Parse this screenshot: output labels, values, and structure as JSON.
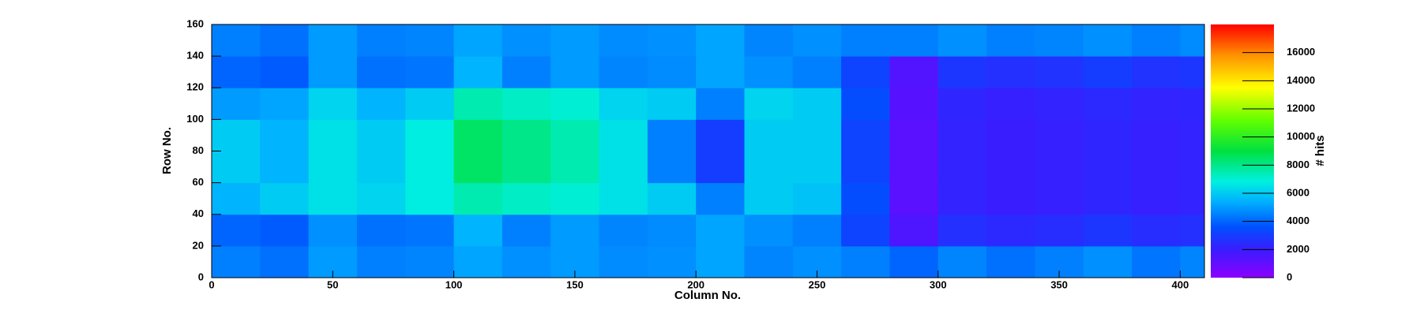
{
  "chart_data": {
    "type": "heatmap",
    "xlabel": "Column No.",
    "ylabel": "Row No.",
    "zlabel": "# hits",
    "xbins": [
      0,
      20,
      40,
      60,
      80,
      100,
      120,
      140,
      160,
      180,
      200,
      220,
      240,
      260,
      280,
      300,
      320,
      340,
      360,
      380,
      400,
      410
    ],
    "ybins": [
      0,
      20,
      40,
      60,
      80,
      100,
      120,
      140,
      160
    ],
    "z": [
      [
        4500,
        4200,
        5000,
        4500,
        4600,
        5200,
        4800,
        5000,
        4700,
        4800,
        5200,
        4600,
        4800,
        4500,
        4000,
        4600,
        4200,
        4500,
        4800,
        4300,
        4600
      ],
      [
        4000,
        3800,
        4800,
        4200,
        4300,
        5500,
        4500,
        5000,
        4600,
        4700,
        5200,
        4800,
        4500,
        3200,
        1500,
        2600,
        2400,
        2500,
        2800,
        2500,
        2600
      ],
      [
        5500,
        6000,
        6500,
        6200,
        6800,
        7500,
        7200,
        7000,
        6500,
        6000,
        4500,
        6000,
        5800,
        3500,
        1200,
        2200,
        2000,
        2100,
        2300,
        2100,
        2200
      ],
      [
        6000,
        5500,
        6500,
        6000,
        6800,
        8500,
        8000,
        7500,
        6500,
        4500,
        3000,
        6000,
        6000,
        3200,
        1200,
        2200,
        2000,
        2100,
        2300,
        2100,
        2200
      ],
      [
        6000,
        5500,
        6500,
        6000,
        6800,
        8500,
        8000,
        7500,
        6500,
        4500,
        3000,
        6000,
        6000,
        3200,
        1200,
        2200,
        2000,
        2100,
        2300,
        2100,
        2200
      ],
      [
        5000,
        5200,
        6200,
        5500,
        6000,
        7500,
        7200,
        7000,
        6200,
        6000,
        4500,
        6200,
        6000,
        3500,
        1300,
        2300,
        2100,
        2200,
        2400,
        2200,
        2300
      ],
      [
        4000,
        3800,
        5000,
        4200,
        4300,
        5500,
        4500,
        5000,
        4600,
        4700,
        5200,
        4800,
        4500,
        3200,
        1400,
        2800,
        2600,
        2700,
        3000,
        2700,
        2800
      ],
      [
        4500,
        4200,
        5000,
        4500,
        4600,
        5200,
        4800,
        5000,
        4700,
        4800,
        5200,
        4600,
        4800,
        4500,
        4500,
        4800,
        4500,
        4600,
        4800,
        4500,
        4700
      ]
    ],
    "xlim": [
      0,
      410
    ],
    "xticks": [
      0,
      50,
      100,
      150,
      200,
      250,
      300,
      350,
      400
    ],
    "ylim": [
      0,
      160
    ],
    "yticks": [
      0,
      20,
      40,
      60,
      80,
      100,
      120,
      140,
      160
    ],
    "zlim": [
      0,
      18000
    ],
    "zticks": [
      0,
      2000,
      4000,
      6000,
      8000,
      10000,
      12000,
      14000,
      16000
    ],
    "colorscale": [
      [
        0,
        "#8c00ff"
      ],
      [
        0.11,
        "#3a1cff"
      ],
      [
        0.2,
        "#0050ff"
      ],
      [
        0.3,
        "#00b0ff"
      ],
      [
        0.38,
        "#00f0e0"
      ],
      [
        0.5,
        "#00e040"
      ],
      [
        0.62,
        "#60ff00"
      ],
      [
        0.75,
        "#ffff00"
      ],
      [
        0.88,
        "#ff9000"
      ],
      [
        1,
        "#ff0000"
      ]
    ]
  }
}
